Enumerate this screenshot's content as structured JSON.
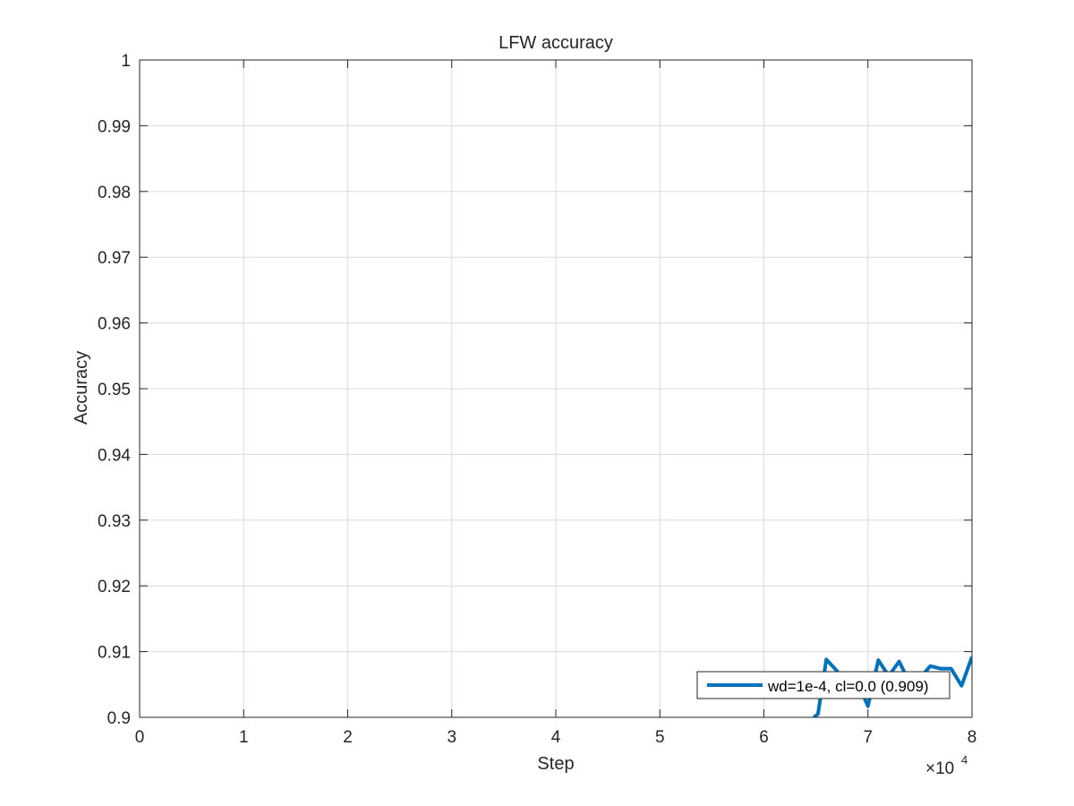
{
  "chart_data": {
    "type": "line",
    "title": "LFW accuracy",
    "xlabel": "Step",
    "ylabel": "Accuracy",
    "x_exponent_label": "×10",
    "x_exponent_power": "4",
    "xlim": [
      0,
      80000
    ],
    "ylim": [
      0.9,
      1
    ],
    "x_ticks": [
      0,
      10000,
      20000,
      30000,
      40000,
      50000,
      60000,
      70000,
      80000
    ],
    "x_tick_labels": [
      "0",
      "1",
      "2",
      "3",
      "4",
      "5",
      "6",
      "7",
      "8"
    ],
    "y_ticks": [
      0.9,
      0.91,
      0.92,
      0.93,
      0.94,
      0.95,
      0.96,
      0.97,
      0.98,
      0.99,
      1
    ],
    "y_tick_labels": [
      "0.9",
      "0.91",
      "0.92",
      "0.93",
      "0.94",
      "0.95",
      "0.96",
      "0.97",
      "0.98",
      "0.99",
      "1"
    ],
    "grid": true,
    "legend_position": "bottom-right",
    "series": [
      {
        "name": "wd=1e-4, cl=0.0 (0.909)",
        "color": "#0072BD",
        "x": [
          64800,
          65200,
          66000,
          67000,
          68000,
          69000,
          70000,
          71000,
          72000,
          73000,
          74000,
          75000,
          76000,
          77000,
          78000,
          79000,
          80000
        ],
        "y": [
          0.9,
          0.9005,
          0.9088,
          0.9071,
          0.9047,
          0.9054,
          0.9017,
          0.9087,
          0.9063,
          0.9085,
          0.9053,
          0.906,
          0.9078,
          0.9074,
          0.9074,
          0.9048,
          0.9092
        ]
      }
    ]
  }
}
